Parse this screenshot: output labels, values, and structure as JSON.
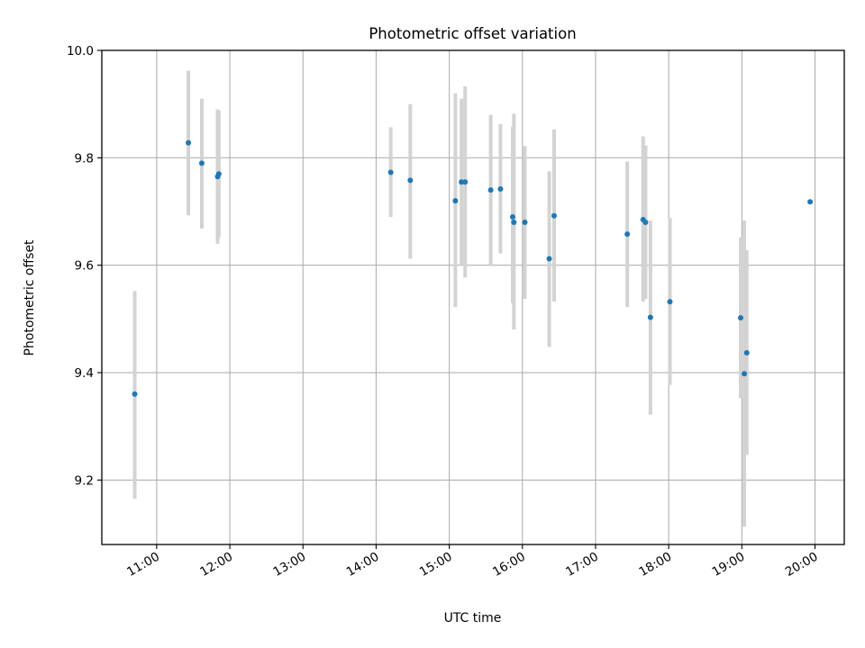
{
  "chart_data": {
    "type": "scatter",
    "title": "Photometric offset variation",
    "xlabel": "UTC time",
    "ylabel": "Photometric offset",
    "xlim": [
      "10:15",
      "20:24"
    ],
    "ylim": [
      9.08,
      10.0
    ],
    "x_ticks": [
      "11:00",
      "12:00",
      "13:00",
      "14:00",
      "15:00",
      "16:00",
      "17:00",
      "18:00",
      "19:00",
      "20:00"
    ],
    "y_ticks": [
      "9.2",
      "9.4",
      "9.6",
      "9.8",
      "10.0"
    ],
    "grid": true,
    "error_bar_color": "#d3d3d3",
    "marker_color": "#1f77b4",
    "points": [
      {
        "x": "10:42",
        "y": 9.36,
        "yerr_low": 9.165,
        "yerr_high": 9.552
      },
      {
        "x": "11:26",
        "y": 9.828,
        "yerr_low": 9.693,
        "yerr_high": 9.962
      },
      {
        "x": "11:37",
        "y": 9.79,
        "yerr_low": 9.668,
        "yerr_high": 9.91
      },
      {
        "x": "11:50",
        "y": 9.765,
        "yerr_low": 9.64,
        "yerr_high": 9.89
      },
      {
        "x": "11:51",
        "y": 9.77,
        "yerr_low": 9.652,
        "yerr_high": 9.888
      },
      {
        "x": "14:12",
        "y": 9.773,
        "yerr_low": 9.69,
        "yerr_high": 9.857
      },
      {
        "x": "14:28",
        "y": 9.758,
        "yerr_low": 9.612,
        "yerr_high": 9.9
      },
      {
        "x": "15:05",
        "y": 9.72,
        "yerr_low": 9.522,
        "yerr_high": 9.92
      },
      {
        "x": "15:10",
        "y": 9.755,
        "yerr_low": 9.6,
        "yerr_high": 9.91
      },
      {
        "x": "15:13",
        "y": 9.755,
        "yerr_low": 9.577,
        "yerr_high": 9.933
      },
      {
        "x": "15:34",
        "y": 9.74,
        "yerr_low": 9.6,
        "yerr_high": 9.88
      },
      {
        "x": "15:42",
        "y": 9.742,
        "yerr_low": 9.622,
        "yerr_high": 9.863
      },
      {
        "x": "15:52",
        "y": 9.69,
        "yerr_low": 9.53,
        "yerr_high": 9.858
      },
      {
        "x": "15:53",
        "y": 9.68,
        "yerr_low": 9.48,
        "yerr_high": 9.882
      },
      {
        "x": "16:02",
        "y": 9.68,
        "yerr_low": 9.537,
        "yerr_high": 9.822
      },
      {
        "x": "16:22",
        "y": 9.612,
        "yerr_low": 9.448,
        "yerr_high": 9.775
      },
      {
        "x": "16:26",
        "y": 9.692,
        "yerr_low": 9.532,
        "yerr_high": 9.853
      },
      {
        "x": "17:26",
        "y": 9.658,
        "yerr_low": 9.522,
        "yerr_high": 9.793
      },
      {
        "x": "17:39",
        "y": 9.685,
        "yerr_low": 9.532,
        "yerr_high": 9.84
      },
      {
        "x": "17:41",
        "y": 9.68,
        "yerr_low": 9.537,
        "yerr_high": 9.823
      },
      {
        "x": "17:45",
        "y": 9.503,
        "yerr_low": 9.322,
        "yerr_high": 9.683
      },
      {
        "x": "18:01",
        "y": 9.532,
        "yerr_low": 9.377,
        "yerr_high": 9.688
      },
      {
        "x": "18:59",
        "y": 9.502,
        "yerr_low": 9.352,
        "yerr_high": 9.652
      },
      {
        "x": "19:02",
        "y": 9.398,
        "yerr_low": 9.113,
        "yerr_high": 9.683
      },
      {
        "x": "19:04",
        "y": 9.437,
        "yerr_low": 9.247,
        "yerr_high": 9.628
      },
      {
        "x": "19:56",
        "y": 9.718,
        "yerr_low": null,
        "yerr_high": null
      }
    ]
  }
}
